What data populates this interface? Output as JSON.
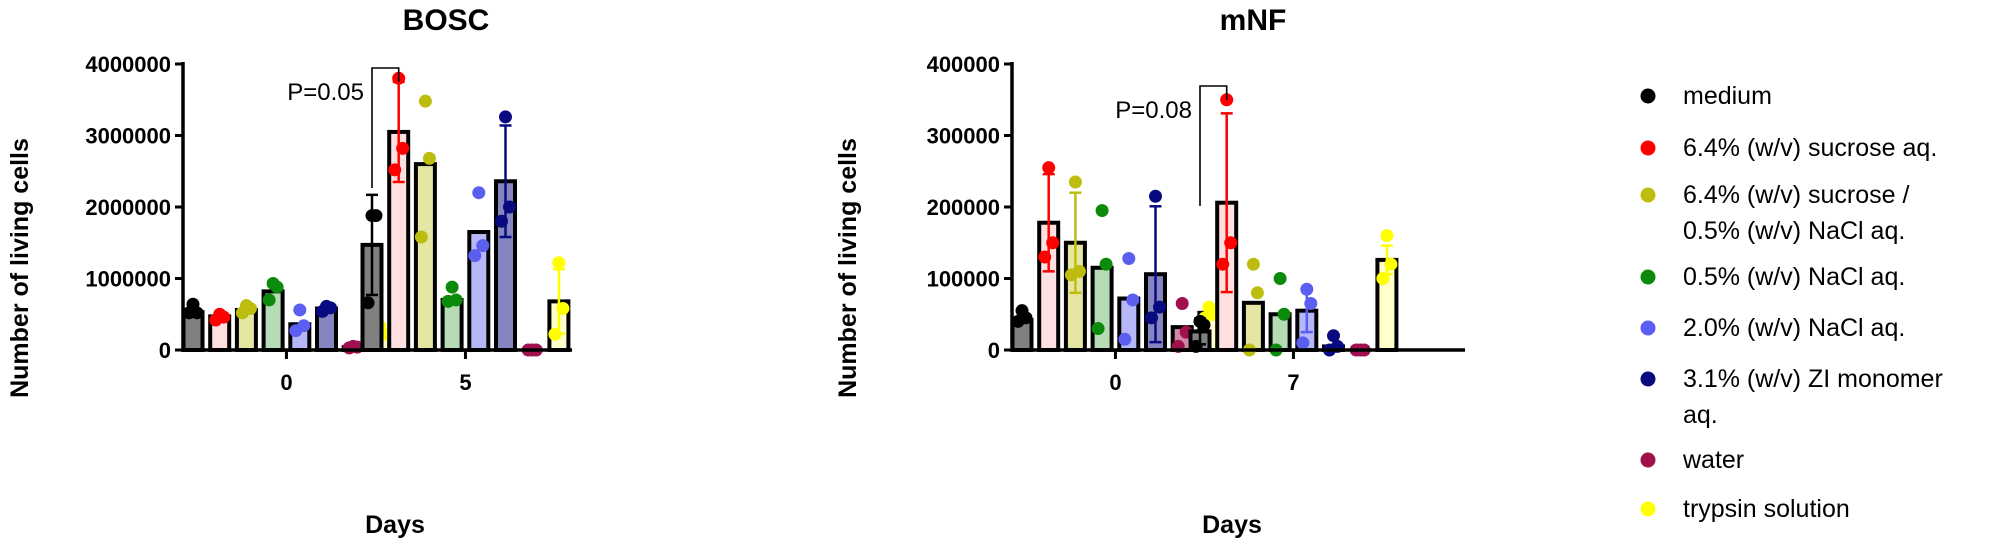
{
  "legend": [
    {
      "key": "medium",
      "lines": [
        "medium"
      ],
      "color": "#000000"
    },
    {
      "key": "sucrose",
      "lines": [
        "6.4% (w/v) sucrose aq."
      ],
      "color": "#ff0000"
    },
    {
      "key": "sucrose_nacl",
      "lines": [
        "6.4% (w/v) sucrose /",
        "0.5% (w/v) NaCl aq."
      ],
      "color": "#bdbd10"
    },
    {
      "key": "nacl05",
      "lines": [
        "0.5% (w/v) NaCl aq."
      ],
      "color": "#0b8a0b"
    },
    {
      "key": "nacl20",
      "lines": [
        "2.0% (w/v) NaCl aq."
      ],
      "color": "#5a5ff0"
    },
    {
      "key": "zi",
      "lines": [
        "3.1% (w/v) ZI monomer",
        "aq."
      ],
      "color": "#0a0a80"
    },
    {
      "key": "water",
      "lines": [
        "water"
      ],
      "color": "#a0104f"
    },
    {
      "key": "trypsin",
      "lines": [
        "trypsin solution"
      ],
      "color": "#ffff00"
    }
  ],
  "chart_data": [
    {
      "type": "bar",
      "title": "BOSC",
      "xlabel": "Days",
      "ylabel": "Number of living cells",
      "ylim": [
        0,
        4000000
      ],
      "yticks": [
        "0",
        "1000000",
        "2000000",
        "3000000",
        "4000000"
      ],
      "categories": [
        "0",
        "5"
      ],
      "annotation": "P=0.05",
      "series": [
        {
          "name": "medium",
          "means": [
            530000,
            1470000
          ],
          "sd": [
            0,
            700000
          ],
          "points": [
            [
              520000,
              520000,
              640000
            ],
            [
              660000,
              1880000,
              1880000
            ]
          ]
        },
        {
          "name": "6.4% (w/v) sucrose aq.",
          "means": [
            470000,
            3050000
          ],
          "sd": [
            0,
            700000
          ],
          "points": [
            [
              420000,
              460000,
              500000
            ],
            [
              2520000,
              2820000,
              3800000
            ]
          ]
        },
        {
          "name": "6.4% (w/v) sucrose / 0.5% (w/v) NaCl aq.",
          "means": [
            560000,
            2600000
          ],
          "sd": [
            0,
            0
          ],
          "points": [
            [
              520000,
              580000,
              620000
            ],
            [
              1580000,
              2680000,
              3480000
            ]
          ]
        },
        {
          "name": "0.5% (w/v) NaCl aq.",
          "means": [
            820000,
            700000
          ],
          "sd": [
            0,
            0
          ],
          "points": [
            [
              700000,
              880000,
              930000
            ],
            [
              680000,
              700000,
              880000
            ]
          ]
        },
        {
          "name": "2.0% (w/v) NaCl aq.",
          "means": [
            360000,
            1650000
          ],
          "sd": [
            0,
            0
          ],
          "points": [
            [
              270000,
              340000,
              560000
            ],
            [
              1320000,
              1460000,
              2200000
            ]
          ]
        },
        {
          "name": "3.1% (w/v) ZI monomer aq.",
          "means": [
            580000,
            2360000
          ],
          "sd": [
            0,
            780000
          ],
          "points": [
            [
              540000,
              590000,
              610000
            ],
            [
              1800000,
              2000000,
              3260000
            ]
          ]
        },
        {
          "name": "water",
          "means": [
            40000,
            0
          ],
          "sd": [
            0,
            0
          ],
          "points": [
            [
              30000,
              40000,
              50000
            ],
            [
              0,
              0,
              0
            ]
          ]
        },
        {
          "name": "trypsin solution",
          "means": [
            220000,
            680000
          ],
          "sd": [
            0,
            450000
          ],
          "points": [
            [
              130000,
              220000,
              330000
            ],
            [
              220000,
              580000,
              1220000
            ]
          ]
        }
      ]
    },
    {
      "type": "bar",
      "title": "mNF",
      "xlabel": "Days",
      "ylabel": "Number of living cells",
      "ylim": [
        0,
        400000
      ],
      "yticks": [
        "0",
        "100000",
        "200000",
        "300000",
        "400000"
      ],
      "categories": [
        "0",
        "7"
      ],
      "annotation": "P=0.08",
      "series": [
        {
          "name": "medium",
          "means": [
            42000,
            26000
          ],
          "sd": [
            0,
            18000
          ],
          "points": [
            [
              40000,
              45000,
              55000
            ],
            [
              5000,
              35000,
              40000
            ]
          ]
        },
        {
          "name": "6.4% (w/v) sucrose aq.",
          "means": [
            178000,
            206000
          ],
          "sd": [
            68000,
            125000
          ],
          "points": [
            [
              130000,
              150000,
              255000
            ],
            [
              120000,
              150000,
              350000
            ]
          ]
        },
        {
          "name": "6.4% (w/v) sucrose / 0.5% (w/v) NaCl aq.",
          "means": [
            150000,
            66000
          ],
          "sd": [
            70000,
            0
          ],
          "points": [
            [
              105000,
              110000,
              235000
            ],
            [
              0,
              80000,
              120000
            ]
          ]
        },
        {
          "name": "0.5% (w/v) NaCl aq.",
          "means": [
            115000,
            50000
          ],
          "sd": [
            0,
            0
          ],
          "points": [
            [
              30000,
              120000,
              195000
            ],
            [
              0,
              50000,
              100000
            ]
          ]
        },
        {
          "name": "2.0% (w/v) NaCl aq.",
          "means": [
            72000,
            55000
          ],
          "sd": [
            0,
            30000
          ],
          "points": [
            [
              15000,
              70000,
              128000
            ],
            [
              10000,
              65000,
              85000
            ]
          ]
        },
        {
          "name": "3.1% (w/v) ZI monomer aq.",
          "means": [
            106000,
            5000
          ],
          "sd": [
            95000,
            0
          ],
          "points": [
            [
              45000,
              60000,
              215000
            ],
            [
              0,
              5000,
              20000
            ]
          ]
        },
        {
          "name": "water",
          "means": [
            32000,
            0
          ],
          "sd": [
            0,
            0
          ],
          "points": [
            [
              5000,
              25000,
              65000
            ],
            [
              0,
              0,
              0
            ]
          ]
        },
        {
          "name": "trypsin solution",
          "means": [
            52000,
            126000
          ],
          "sd": [
            0,
            20000
          ],
          "points": [
            [
              45000,
              50000,
              60000
            ],
            [
              100000,
              120000,
              160000
            ]
          ]
        }
      ]
    }
  ]
}
